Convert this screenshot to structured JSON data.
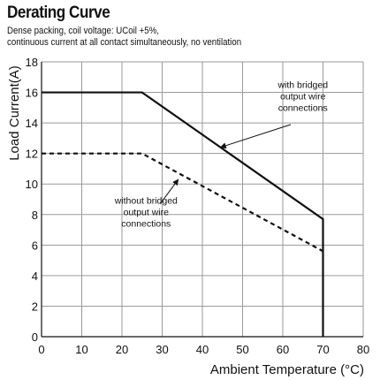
{
  "title": "Derating Curve",
  "subtitle_lines": [
    "Dense packing, coil voltage: UCoil +5%,",
    "continuous current at all contact simultaneously, no ventilation"
  ],
  "chart_data": {
    "type": "line",
    "title": "Derating Curve",
    "xlabel": "Ambient Temperature (°C)",
    "ylabel": "Load Current(A)",
    "xlim": [
      0,
      80
    ],
    "ylim": [
      0,
      18
    ],
    "xticks": [
      0,
      10,
      20,
      30,
      40,
      50,
      60,
      70,
      80
    ],
    "yticks": [
      0,
      2,
      4,
      6,
      8,
      10,
      12,
      14,
      16,
      18
    ],
    "grid": true,
    "series": [
      {
        "line_style": "solid",
        "color": "#111111",
        "x": [
          0,
          25,
          70,
          70
        ],
        "y": [
          16,
          16,
          7.7,
          0
        ]
      },
      {
        "line_style": "dashed",
        "color": "#111111",
        "x": [
          0,
          25,
          70
        ],
        "y": [
          12,
          12,
          5.6
        ]
      }
    ],
    "annotations": [
      {
        "lines": [
          "with bridged",
          "output wire",
          "connections"
        ],
        "text_x": 65,
        "text_y": 16.3,
        "align": "middle",
        "arrow_from": [
          62,
          13.9
        ],
        "arrow_to": [
          44.5,
          12.4
        ]
      },
      {
        "lines": [
          "without bridged",
          "output wire",
          "connections"
        ],
        "text_x": 26,
        "text_y": 8.7,
        "align": "middle",
        "arrow_from": [
          29.5,
          8.7
        ],
        "arrow_to": [
          34,
          10.3
        ]
      }
    ]
  }
}
